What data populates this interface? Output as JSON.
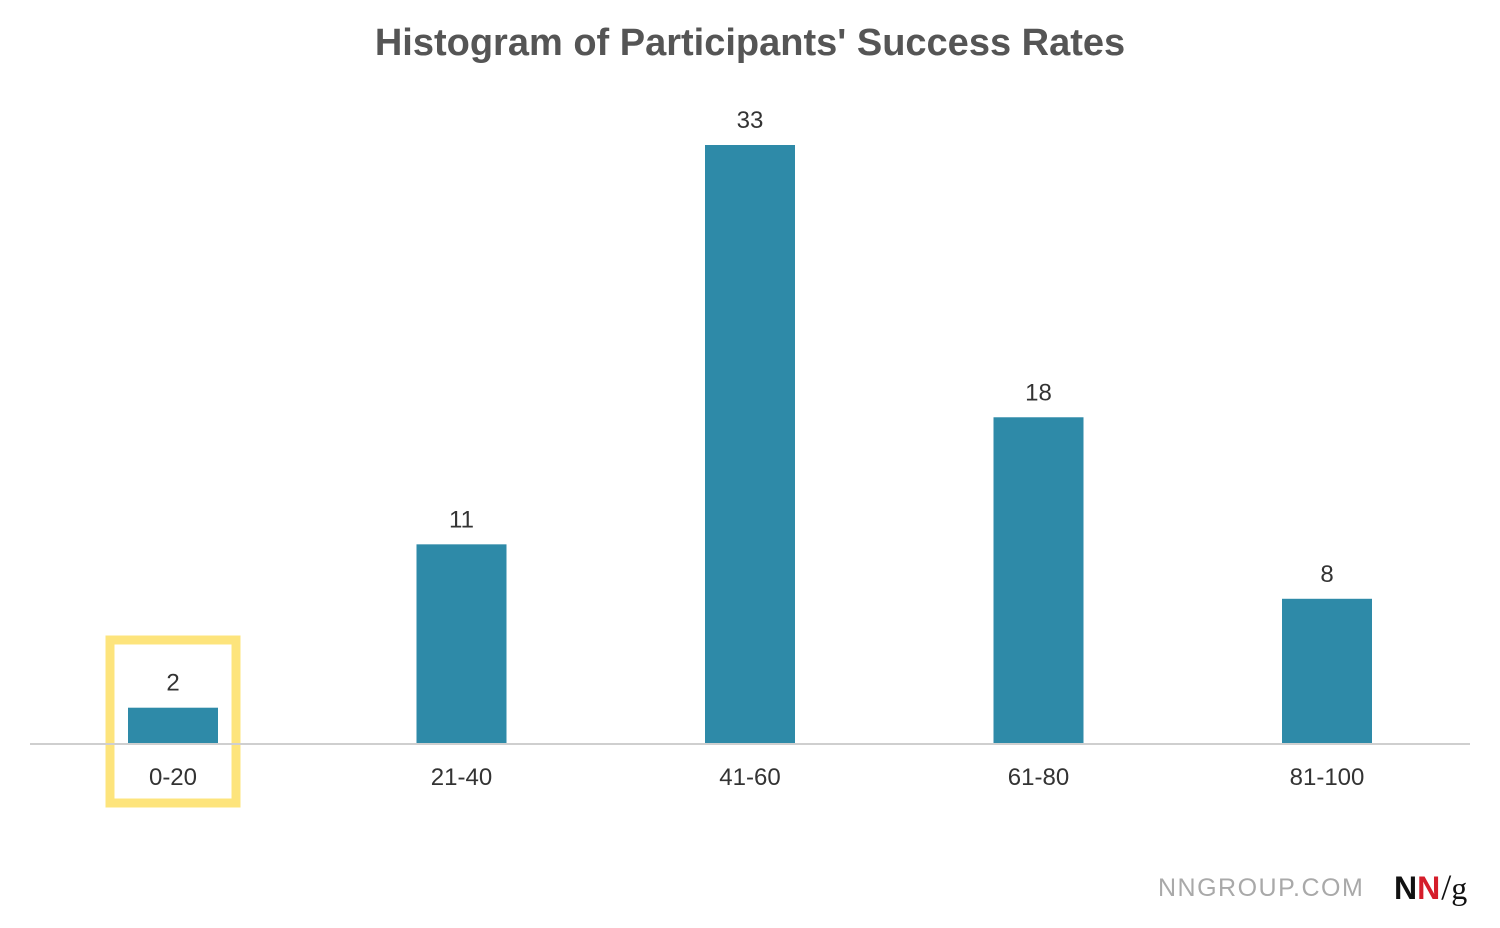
{
  "chart_data": {
    "type": "bar",
    "title": "Histogram of Participants' Success Rates",
    "xlabel": "",
    "ylabel": "",
    "categories": [
      "0-20",
      "21-40",
      "41-60",
      "61-80",
      "81-100"
    ],
    "values": [
      2,
      11,
      33,
      18,
      8
    ],
    "ylim": [
      0,
      33
    ],
    "grid": false,
    "legend": "none",
    "data_labels": true,
    "bar_color": "#2e8aa8",
    "highlight": {
      "category": "0-20",
      "color": "#fde47c"
    }
  },
  "footer": {
    "site": "NNGROUP.COM",
    "logo": {
      "n1": "N",
      "n2": "N",
      "slash": "/",
      "g": "g"
    }
  },
  "colors": {
    "title": "#555555",
    "axis": "#cfcfcf",
    "label": "#333333",
    "logo_red": "#d51d2a"
  }
}
